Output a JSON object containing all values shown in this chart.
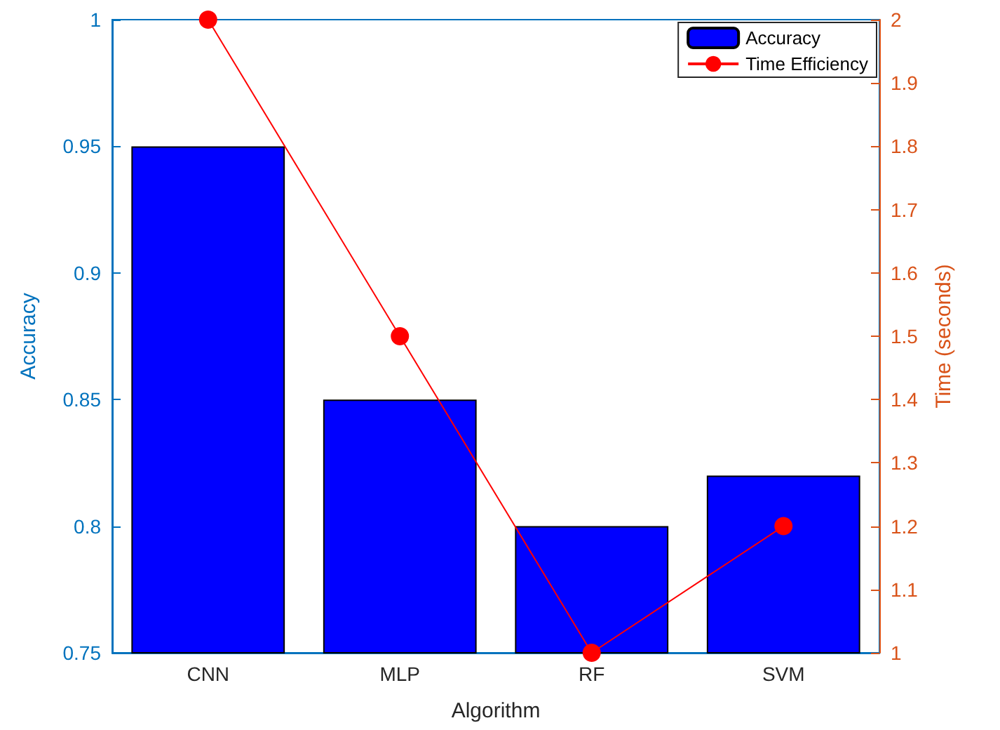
{
  "chart_data": {
    "type": "bar",
    "xlabel": "Algorithm",
    "ylabel": "Accuracy",
    "y2label": "Time (seconds)",
    "categories": [
      "CNN",
      "MLP",
      "RF",
      "SVM"
    ],
    "series": [
      {
        "name": "Accuracy",
        "color": "#0000ff",
        "values": [
          0.95,
          0.85,
          0.8,
          0.82
        ]
      },
      {
        "name": "Time Efficiency",
        "type": "line",
        "axis": "y2",
        "color": "#ff0000",
        "marker": "circle",
        "line_style": "solid",
        "values": [
          2,
          1.5,
          1,
          1.2
        ]
      }
    ],
    "ylim": [
      0.75,
      1
    ],
    "yticks": [
      0.75,
      0.8,
      0.85,
      0.9,
      0.95,
      1
    ],
    "y2lim": [
      1,
      2
    ],
    "y2ticks": [
      1,
      1.1,
      1.2,
      1.3,
      1.4,
      1.5,
      1.6,
      1.7,
      1.8,
      1.9,
      2
    ],
    "legend": "top right",
    "grid": false
  }
}
